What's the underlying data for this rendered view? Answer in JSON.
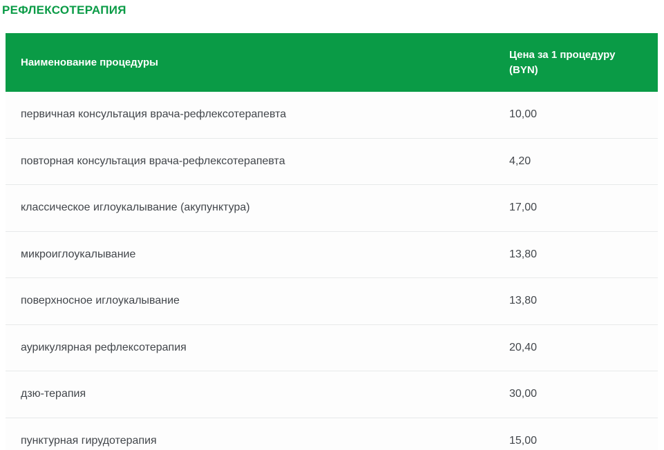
{
  "page": {
    "title": "РЕФЛЕКСОТЕРАПИЯ"
  },
  "table": {
    "columns": [
      {
        "label": "Наименование процедуры"
      },
      {
        "label": "Цена за 1 процедуру (BYN)"
      }
    ],
    "rows": [
      {
        "name": "первичная консультация врача-рефлексотерапевта",
        "price": "10,00"
      },
      {
        "name": "повторная консультация врача-рефлексотерапевта",
        "price": "4,20"
      },
      {
        "name": "классическое иглоукалывание (акупунктура)",
        "price": "17,00"
      },
      {
        "name": "микроиглоукалывание",
        "price": "13,80"
      },
      {
        "name": "поверхносное иглоукалывание",
        "price": "13,80"
      },
      {
        "name": "аурикулярная рефлексотерапия",
        "price": "20,40"
      },
      {
        "name": "дзю-терапия",
        "price": "30,00"
      },
      {
        "name": "пунктурная гирудотерапия",
        "price": "15,00"
      }
    ]
  },
  "colors": {
    "accent_green": "#0a9b46",
    "header_text": "#ffffff",
    "row_text": "#42464b",
    "row_background": "#fdfdfd",
    "divider": "#e7e9ea"
  }
}
